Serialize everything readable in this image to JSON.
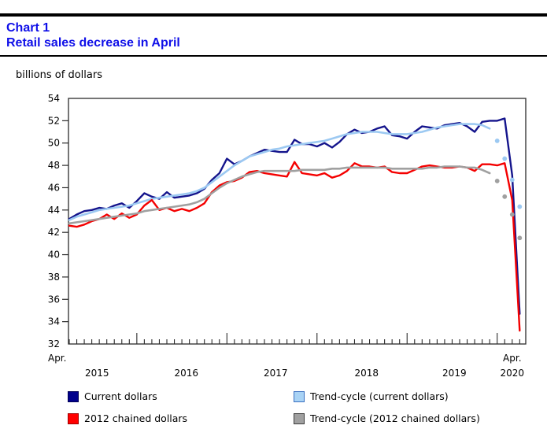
{
  "header": {
    "chart_number": "Chart 1",
    "title": "Retail sales decrease in April",
    "title_color": "#0f0fe8",
    "axis_unit": "billions of dollars"
  },
  "chart_data": {
    "type": "line",
    "title": "Retail sales decrease in April",
    "ylabel": "billions of dollars",
    "xlabel": "",
    "ylim": [
      32,
      54
    ],
    "y_ticks": [
      32,
      34,
      36,
      38,
      40,
      42,
      44,
      46,
      48,
      50,
      52,
      54
    ],
    "grid": false,
    "legend_position": "bottom",
    "axis_color": "#2b2b2b",
    "x_range": {
      "start": "Apr 2015",
      "end": "Apr 2020",
      "step": "month",
      "months_total": 61
    },
    "x_edge_labels": [
      {
        "label": "Apr.",
        "month": -1.6
      },
      {
        "label": "Apr.",
        "month": 59.0
      }
    ],
    "x_year_labels": [
      {
        "label": "2015",
        "month": 3.7
      },
      {
        "label": "2016",
        "month": 15.6
      },
      {
        "label": "2017",
        "month": 27.5
      },
      {
        "label": "2018",
        "month": 39.6
      },
      {
        "label": "2019",
        "month": 51.3
      },
      {
        "label": "2020",
        "month": 59.0
      }
    ],
    "january_tick_months": [
      9,
      21,
      33,
      45,
      57
    ],
    "draw_order": [
      0,
      2,
      1,
      3
    ],
    "series": [
      {
        "name": "Current dollars",
        "color": "#14148c",
        "line_width": 2.4,
        "start_month": 0,
        "values": [
          43.2,
          43.6,
          43.9,
          44.0,
          44.2,
          44.1,
          44.4,
          44.6,
          44.2,
          44.8,
          45.5,
          45.2,
          45.0,
          45.6,
          45.1,
          45.2,
          45.3,
          45.5,
          45.9,
          46.7,
          47.3,
          48.6,
          48.1,
          48.4,
          48.8,
          49.1,
          49.4,
          49.3,
          49.2,
          49.2,
          50.3,
          49.9,
          49.9,
          49.7,
          50.0,
          49.6,
          50.1,
          50.8,
          51.2,
          50.9,
          51.0,
          51.3,
          51.5,
          50.7,
          50.6,
          50.4,
          51.0,
          51.5,
          51.4,
          51.3,
          51.6,
          51.7,
          51.8,
          51.5,
          51.0,
          51.9,
          52.0,
          52.0,
          52.2,
          47.1,
          34.7
        ]
      },
      {
        "name": "2012 chained dollars",
        "color": "#f40000",
        "line_width": 2.4,
        "start_month": 0,
        "values": [
          42.6,
          42.5,
          42.7,
          43.0,
          43.2,
          43.6,
          43.2,
          43.7,
          43.3,
          43.6,
          44.4,
          44.9,
          44.0,
          44.2,
          43.9,
          44.1,
          43.9,
          44.2,
          44.6,
          45.6,
          46.2,
          46.5,
          46.6,
          46.9,
          47.4,
          47.5,
          47.3,
          47.2,
          47.1,
          47.0,
          48.3,
          47.3,
          47.2,
          47.1,
          47.3,
          46.9,
          47.1,
          47.5,
          48.2,
          47.9,
          47.9,
          47.8,
          47.9,
          47.4,
          47.3,
          47.3,
          47.6,
          47.9,
          48.0,
          47.9,
          47.8,
          47.8,
          47.9,
          47.8,
          47.5,
          48.1,
          48.1,
          48.0,
          48.2,
          44.9,
          33.2
        ]
      },
      {
        "name": "Trend-cycle (current dollars)",
        "color": "#9cc9f2",
        "line_width": 2.6,
        "start_month": 0,
        "values": [
          43.1,
          43.4,
          43.6,
          43.8,
          44.0,
          44.1,
          44.2,
          44.3,
          44.4,
          44.6,
          44.8,
          45.0,
          45.1,
          45.2,
          45.3,
          45.4,
          45.5,
          45.7,
          46.0,
          46.5,
          47.0,
          47.5,
          48.0,
          48.4,
          48.8,
          49.0,
          49.2,
          49.4,
          49.5,
          49.7,
          49.8,
          49.9,
          50.0,
          50.1,
          50.2,
          50.4,
          50.6,
          50.8,
          50.9,
          51.0,
          51.0,
          51.0,
          50.9,
          50.8,
          50.8,
          50.8,
          50.9,
          51.0,
          51.2,
          51.4,
          51.5,
          51.6,
          51.7,
          51.7,
          51.7,
          51.6,
          51.3
        ],
        "dots": {
          "start_month": 57,
          "values": [
            50.2,
            48.6,
            46.7,
            44.3
          ]
        }
      },
      {
        "name": "Trend-cycle (2012 chained dollars)",
        "color": "#a0a0a0",
        "line_width": 2.6,
        "start_month": 0,
        "values": [
          42.8,
          42.9,
          43.0,
          43.1,
          43.2,
          43.3,
          43.4,
          43.5,
          43.6,
          43.7,
          43.9,
          44.0,
          44.1,
          44.2,
          44.3,
          44.4,
          44.5,
          44.7,
          45.0,
          45.5,
          46.0,
          46.4,
          46.7,
          47.0,
          47.2,
          47.4,
          47.5,
          47.5,
          47.5,
          47.5,
          47.5,
          47.6,
          47.6,
          47.6,
          47.6,
          47.7,
          47.7,
          47.8,
          47.8,
          47.8,
          47.8,
          47.8,
          47.8,
          47.7,
          47.7,
          47.7,
          47.7,
          47.7,
          47.8,
          47.8,
          47.9,
          47.9,
          47.9,
          47.8,
          47.8,
          47.6,
          47.3
        ],
        "dots": {
          "start_month": 57,
          "values": [
            46.6,
            45.2,
            43.6,
            41.5
          ]
        }
      }
    ]
  },
  "legend": {
    "items": [
      {
        "label": "Current dollars",
        "fill": "#00008b",
        "border": "#000055"
      },
      {
        "label": "Trend-cycle (current dollars)",
        "fill": "#a9d3f5",
        "border": "#3a6fc0"
      },
      {
        "label": "2012 chained dollars",
        "fill": "#ff0000",
        "border": "#a00000"
      },
      {
        "label": "Trend-cycle (2012 chained dollars)",
        "fill": "#a0a0a0",
        "border": "#3c3c3c"
      }
    ]
  }
}
